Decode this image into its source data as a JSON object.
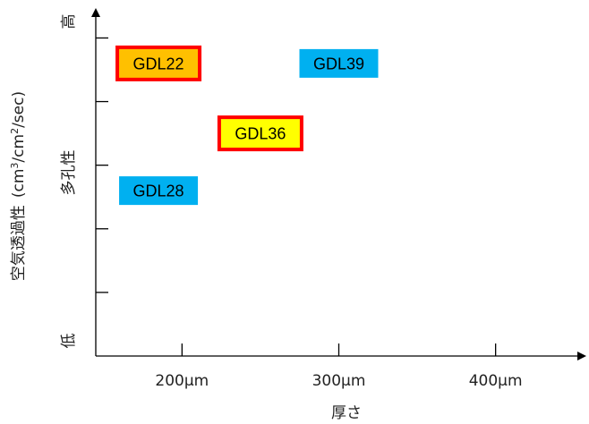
{
  "chart_data": {
    "type": "scatter",
    "xlabel": "厚さ",
    "ylabel": "空気透過性（cm³/cm²/sec）",
    "ylabel_parts": {
      "main": "空気透過性",
      "unit_prefix": "(cm",
      "sup1": "3",
      "unit_mid": "/cm",
      "sup2": "2",
      "unit_suffix": "/sec)"
    },
    "y_side_labels": {
      "top": "高",
      "middle": "多孔性",
      "bottom": "低"
    },
    "x_ticks": [
      {
        "value": 200,
        "label": "200μm"
      },
      {
        "value": 300,
        "label": "300μm"
      },
      {
        "value": 400,
        "label": "400μm"
      }
    ],
    "xlim": [
      145,
      455
    ],
    "y_ticks": [
      1,
      2,
      3,
      4,
      5
    ],
    "ylim": [
      0,
      5.4
    ],
    "y_axis_qualitative": true,
    "grid": false,
    "legend": "none",
    "points": [
      {
        "label": "GDL22",
        "x": 185,
        "y": 4.6,
        "fill": "#ffc000",
        "border": "#ff0000"
      },
      {
        "label": "GDL39",
        "x": 300,
        "y": 4.6,
        "fill": "#00b0f0",
        "border": null
      },
      {
        "label": "GDL36",
        "x": 250,
        "y": 3.5,
        "fill": "#ffff00",
        "border": "#ff0000"
      },
      {
        "label": "GDL28",
        "x": 185,
        "y": 2.6,
        "fill": "#00b0f0",
        "border": null
      }
    ]
  }
}
